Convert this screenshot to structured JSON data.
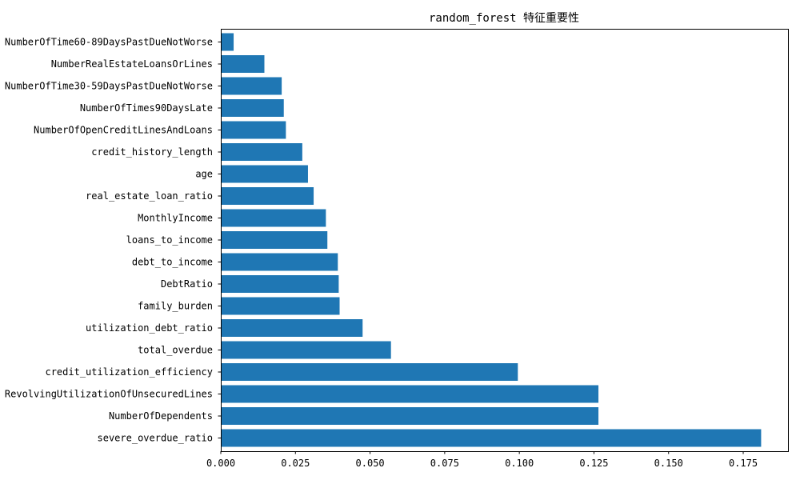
{
  "chart_data": {
    "type": "bar",
    "orientation": "horizontal",
    "title": "random_forest 特征重要性",
    "xlabel": "",
    "ylabel": "",
    "xlim": [
      0,
      0.19
    ],
    "xticks": [
      "0.000",
      "0.025",
      "0.050",
      "0.075",
      "0.100",
      "0.125",
      "0.150",
      "0.175"
    ],
    "bar_color": "#1f77b4",
    "grid": false,
    "categories": [
      "severe_overdue_ratio",
      "NumberOfDependents",
      "RevolvingUtilizationOfUnsecuredLines",
      "credit_utilization_efficiency",
      "total_overdue",
      "utilization_debt_ratio",
      "family_burden",
      "DebtRatio",
      "debt_to_income",
      "loans_to_income",
      "MonthlyIncome",
      "real_estate_loan_ratio",
      "age",
      "credit_history_length",
      "NumberOfOpenCreditLinesAndLoans",
      "NumberOfTimes90DaysLate",
      "NumberOfTime30-59DaysPastDueNotWorse",
      "NumberRealEstateLoansOrLines",
      "NumberOfTime60-89DaysPastDueNotWorse"
    ],
    "values": [
      0.181,
      0.1265,
      0.1265,
      0.0995,
      0.057,
      0.0475,
      0.0398,
      0.0395,
      0.0392,
      0.0357,
      0.0352,
      0.0311,
      0.0292,
      0.0273,
      0.0218,
      0.0211,
      0.0204,
      0.0146,
      0.0043
    ]
  }
}
